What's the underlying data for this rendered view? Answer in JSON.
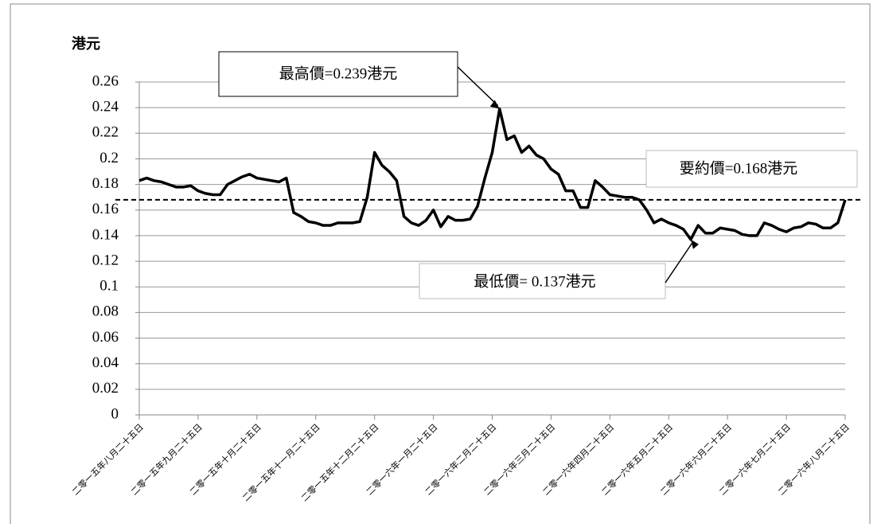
{
  "chart_data": {
    "type": "line",
    "y_label": "港元",
    "categories": [
      "二零一五年八月二十五日",
      null,
      null,
      null,
      null,
      null,
      null,
      null,
      "二零一五年九月二十五日",
      null,
      null,
      null,
      null,
      null,
      null,
      null,
      "二零一五年十月二十五日",
      null,
      null,
      null,
      null,
      null,
      null,
      null,
      "二零一五年十一月二十五日",
      null,
      null,
      null,
      null,
      null,
      null,
      null,
      "二零一五年十二月二十五日",
      null,
      null,
      null,
      null,
      null,
      null,
      null,
      "二零一六年一月二十五日",
      null,
      null,
      null,
      null,
      null,
      null,
      null,
      "二零一六年二月二十五日",
      null,
      null,
      null,
      null,
      null,
      null,
      null,
      "二零一六年三月二十五日",
      null,
      null,
      null,
      null,
      null,
      null,
      null,
      "二零一六年四月二十五日",
      null,
      null,
      null,
      null,
      null,
      null,
      null,
      "二零一六年五月二十五日",
      null,
      null,
      null,
      null,
      null,
      null,
      null,
      "二零一六年六月二十五日",
      null,
      null,
      null,
      null,
      null,
      null,
      null,
      "二零一六年七月二十五日",
      null,
      null,
      null,
      null,
      null,
      null,
      null,
      "二零一六年八月二十五日"
    ],
    "values": [
      0.183,
      0.185,
      0.183,
      0.182,
      0.18,
      0.178,
      0.178,
      0.179,
      0.175,
      0.173,
      0.172,
      0.172,
      0.18,
      0.183,
      0.186,
      0.188,
      0.185,
      0.184,
      0.183,
      0.182,
      0.185,
      0.158,
      0.155,
      0.151,
      0.15,
      0.148,
      0.148,
      0.15,
      0.15,
      0.15,
      0.151,
      0.17,
      0.205,
      0.195,
      0.19,
      0.183,
      0.155,
      0.15,
      0.148,
      0.152,
      0.16,
      0.147,
      0.155,
      0.152,
      0.152,
      0.153,
      0.163,
      0.185,
      0.205,
      0.239,
      0.215,
      0.218,
      0.205,
      0.21,
      0.203,
      0.2,
      0.192,
      0.188,
      0.175,
      0.175,
      0.162,
      0.162,
      0.183,
      0.178,
      0.172,
      0.171,
      0.17,
      0.17,
      0.168,
      0.16,
      0.15,
      0.153,
      0.15,
      0.148,
      0.145,
      0.137,
      0.148,
      0.142,
      0.142,
      0.146,
      0.145,
      0.144,
      0.141,
      0.14,
      0.14,
      0.15,
      0.148,
      0.145,
      0.143,
      0.146,
      0.147,
      0.15,
      0.149,
      0.146,
      0.146,
      0.15,
      0.168
    ],
    "color": "#000000",
    "ylim": [
      0,
      0.26
    ],
    "yticks": [
      0,
      0.02,
      0.04,
      0.06,
      0.08,
      0.1,
      0.12,
      0.14,
      0.16,
      0.18,
      0.2,
      0.22,
      0.24,
      0.26
    ],
    "grid": true,
    "reference_line": {
      "value": 0.168,
      "label": "要約價=0.168港元"
    },
    "max_annotation": "最高價=0.239港元",
    "min_annotation": "最低價= 0.137港元"
  }
}
